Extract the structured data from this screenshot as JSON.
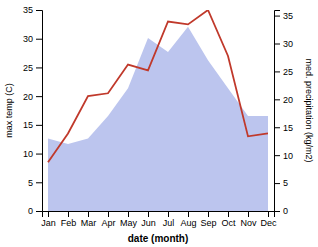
{
  "chart_data": {
    "type": "line",
    "categories": [
      "Jan",
      "Feb",
      "Mar",
      "Apr",
      "May",
      "Jun",
      "Jul",
      "Aug",
      "Sep",
      "Oct",
      "Nov",
      "Dec"
    ],
    "x_label": "date (month)",
    "y_label": "max temp (C)",
    "y2_label": "med. precipitation (kg/m2)",
    "series": [
      {
        "type": "area",
        "axis": "y2",
        "color": "#bcc5ee",
        "values": [
          13.0,
          12.0,
          13.0,
          17.0,
          22.0,
          31.0,
          28.5,
          33.0,
          27.0,
          22.0,
          17.0,
          17.0
        ]
      },
      {
        "type": "line",
        "color": "#c0392b",
        "values": [
          8.5,
          13.5,
          20.0,
          20.5,
          25.5,
          24.5,
          33.0,
          32.5,
          35.0,
          27.0,
          13.0,
          13.5
        ]
      }
    ],
    "ylim": [
      0,
      35
    ],
    "yticks": [
      0,
      5,
      10,
      15,
      20,
      25,
      30,
      35
    ],
    "y2lim": [
      0,
      36
    ],
    "y2ticks": [
      0,
      5,
      10,
      15,
      20,
      25,
      30,
      35
    ],
    "grid": false
  }
}
